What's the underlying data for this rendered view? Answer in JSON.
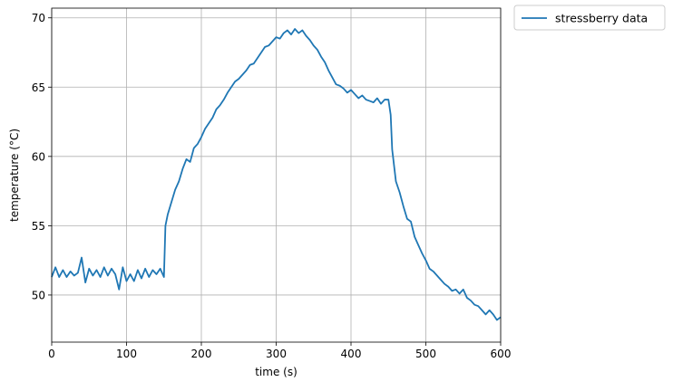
{
  "chart_data": {
    "type": "line",
    "xlabel": "time (s)",
    "ylabel": "temperature (°C)",
    "xlim": [
      0,
      600
    ],
    "ylim": [
      46.6,
      70.7
    ],
    "x_ticks": [
      0,
      100,
      200,
      300,
      400,
      500,
      600
    ],
    "y_ticks": [
      50,
      55,
      60,
      65,
      70
    ],
    "grid": true,
    "legend_position": "outside-top-right",
    "series": [
      {
        "name": "stressberry data",
        "color": "#1f77b4",
        "x": [
          0,
          5,
          10,
          15,
          20,
          25,
          30,
          35,
          40,
          45,
          50,
          55,
          60,
          65,
          70,
          75,
          80,
          85,
          90,
          95,
          100,
          105,
          110,
          115,
          120,
          125,
          130,
          135,
          140,
          145,
          150,
          152,
          155,
          160,
          165,
          170,
          175,
          180,
          185,
          190,
          195,
          200,
          205,
          210,
          215,
          220,
          225,
          230,
          235,
          240,
          245,
          250,
          255,
          260,
          265,
          270,
          275,
          280,
          285,
          290,
          295,
          300,
          305,
          310,
          315,
          320,
          325,
          330,
          335,
          340,
          345,
          350,
          355,
          360,
          365,
          370,
          375,
          380,
          385,
          390,
          395,
          400,
          405,
          410,
          415,
          420,
          425,
          430,
          435,
          440,
          445,
          450,
          453,
          455,
          460,
          465,
          470,
          475,
          480,
          485,
          490,
          495,
          500,
          505,
          510,
          515,
          520,
          525,
          530,
          535,
          540,
          545,
          550,
          555,
          560,
          565,
          570,
          575,
          580,
          585,
          590,
          595,
          600
        ],
        "y": [
          51.3,
          52.0,
          51.3,
          51.8,
          51.3,
          51.7,
          51.4,
          51.6,
          52.7,
          50.9,
          51.9,
          51.4,
          51.8,
          51.3,
          52.0,
          51.4,
          51.9,
          51.5,
          50.4,
          52.0,
          51.0,
          51.5,
          51.0,
          51.8,
          51.2,
          51.9,
          51.3,
          51.8,
          51.5,
          51.9,
          51.3,
          55.0,
          55.8,
          56.7,
          57.6,
          58.2,
          59.1,
          59.8,
          59.6,
          60.6,
          60.9,
          61.4,
          62.0,
          62.4,
          62.8,
          63.4,
          63.7,
          64.1,
          64.6,
          65.0,
          65.4,
          65.6,
          65.9,
          66.2,
          66.6,
          66.7,
          67.1,
          67.5,
          67.9,
          68.0,
          68.3,
          68.6,
          68.5,
          68.9,
          69.1,
          68.8,
          69.2,
          68.9,
          69.1,
          68.7,
          68.4,
          68.0,
          67.7,
          67.2,
          66.8,
          66.2,
          65.7,
          65.2,
          65.1,
          64.9,
          64.6,
          64.8,
          64.5,
          64.2,
          64.4,
          64.1,
          64.0,
          63.9,
          64.2,
          63.8,
          64.1,
          64.1,
          63.0,
          60.5,
          58.2,
          57.4,
          56.4,
          55.5,
          55.3,
          54.2,
          53.6,
          53.0,
          52.5,
          51.9,
          51.7,
          51.4,
          51.1,
          50.8,
          50.6,
          50.3,
          50.4,
          50.1,
          50.4,
          49.8,
          49.6,
          49.3,
          49.2,
          48.9,
          48.6,
          48.9,
          48.6,
          48.2,
          48.4
        ]
      }
    ]
  }
}
